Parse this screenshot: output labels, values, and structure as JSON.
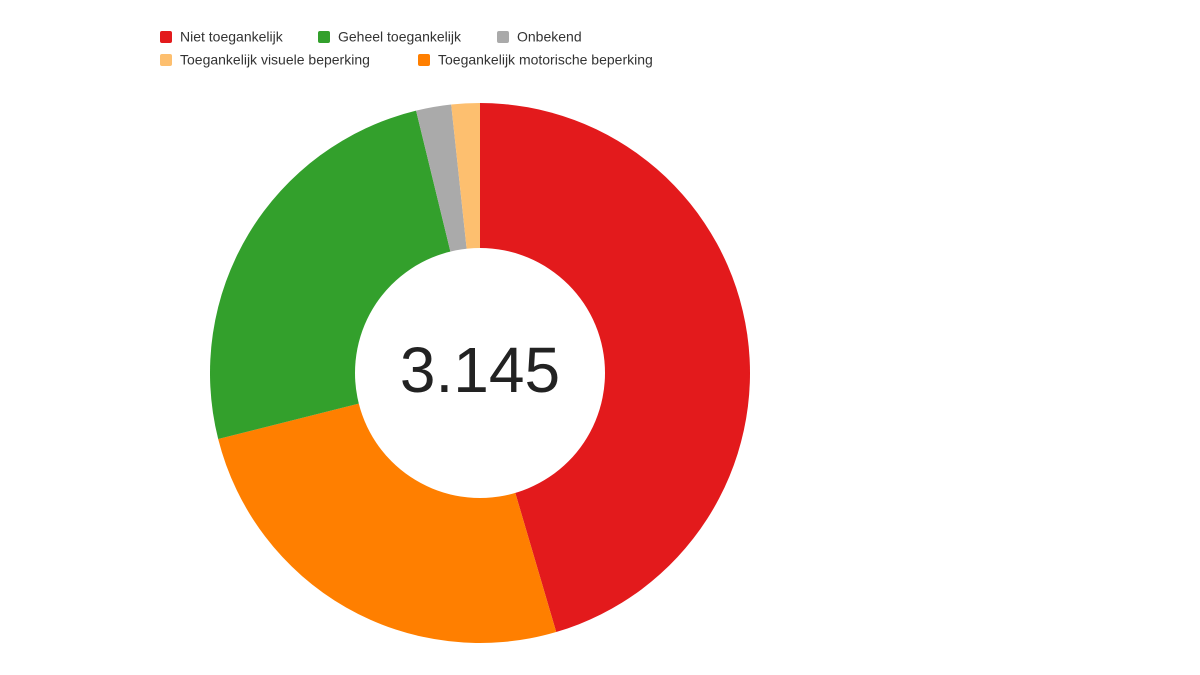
{
  "chart_data": {
    "type": "donut",
    "center_label": "3.145",
    "series": [
      {
        "name": "Niet toegankelijk",
        "color": "#e31a1c",
        "value": 45.4
      },
      {
        "name": "Geheel toegankelijk",
        "color": "#33a02c",
        "value": 25.1
      },
      {
        "name": "Onbekend",
        "color": "#aaaaaa",
        "value": 2.1
      },
      {
        "name": "Toegankelijk visuele beperking",
        "color": "#fdbf6f",
        "value": 1.7
      },
      {
        "name": "Toegankelijk motorische beperking",
        "color": "#ff7f00",
        "value": 25.6
      }
    ]
  }
}
